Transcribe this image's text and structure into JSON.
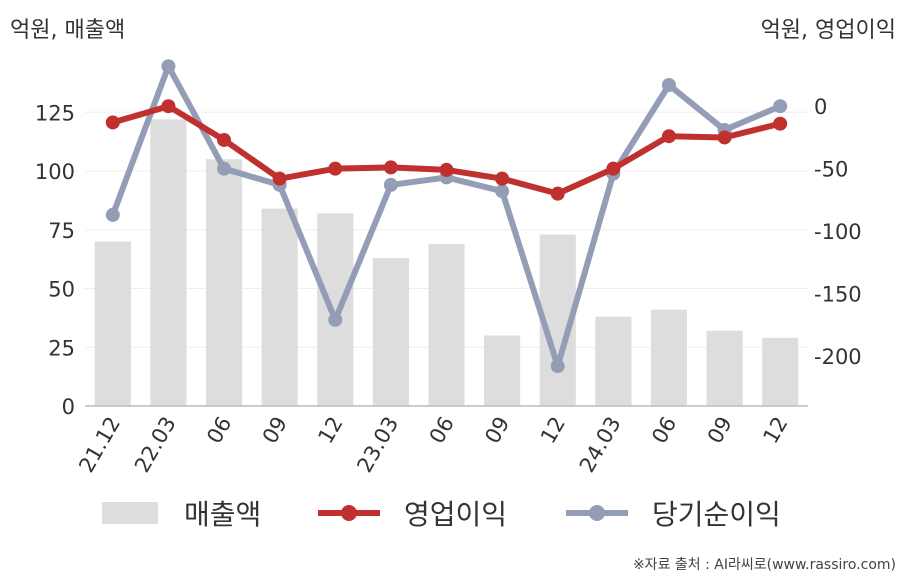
{
  "left_unit": "억원, 매출액",
  "right_unit": "억원, 영업이익",
  "source": "※자료 출처 : AI라씨로(www.rassiro.com)",
  "colors": {
    "bar": "#dddddd",
    "operating_profit": "#c0302e",
    "net_income": "#939db6",
    "grid": "#eeeeee",
    "axis": "#bbbbbb"
  },
  "legend": {
    "revenue": "매출액",
    "operating_profit": "영업이익",
    "net_income": "당기순이익"
  },
  "chart_data": {
    "type": "bar",
    "categories": [
      "21.12",
      "22.03",
      "06",
      "09",
      "12",
      "23.03",
      "06",
      "09",
      "12",
      "24.03",
      "06",
      "09",
      "12"
    ],
    "grid": "horizontal",
    "legend_position": "bottom",
    "left_axis": {
      "ticks": [
        0,
        25,
        50,
        75,
        100,
        125
      ],
      "ylim": [
        0,
        143
      ]
    },
    "right_axis": {
      "ticks": [
        0,
        -50,
        -100,
        -150,
        -200
      ],
      "ylim": [
        -240,
        29
      ]
    },
    "series": [
      {
        "name": "매출액",
        "type": "bar",
        "axis": "left",
        "values": [
          70,
          122,
          105,
          84,
          82,
          63,
          69,
          30,
          73,
          38,
          41,
          32,
          29
        ]
      },
      {
        "name": "영업이익",
        "type": "line",
        "axis": "right",
        "values": [
          -13,
          0,
          -27,
          -58,
          -50,
          -49,
          -51,
          -58,
          -70,
          -50,
          -24,
          -25,
          -14
        ]
      },
      {
        "name": "당기순이익",
        "type": "line",
        "axis": "right",
        "values": [
          -87,
          32,
          -50,
          -63,
          -171,
          -63,
          -57,
          -68,
          -208,
          -54,
          17,
          -19,
          0
        ]
      }
    ]
  }
}
